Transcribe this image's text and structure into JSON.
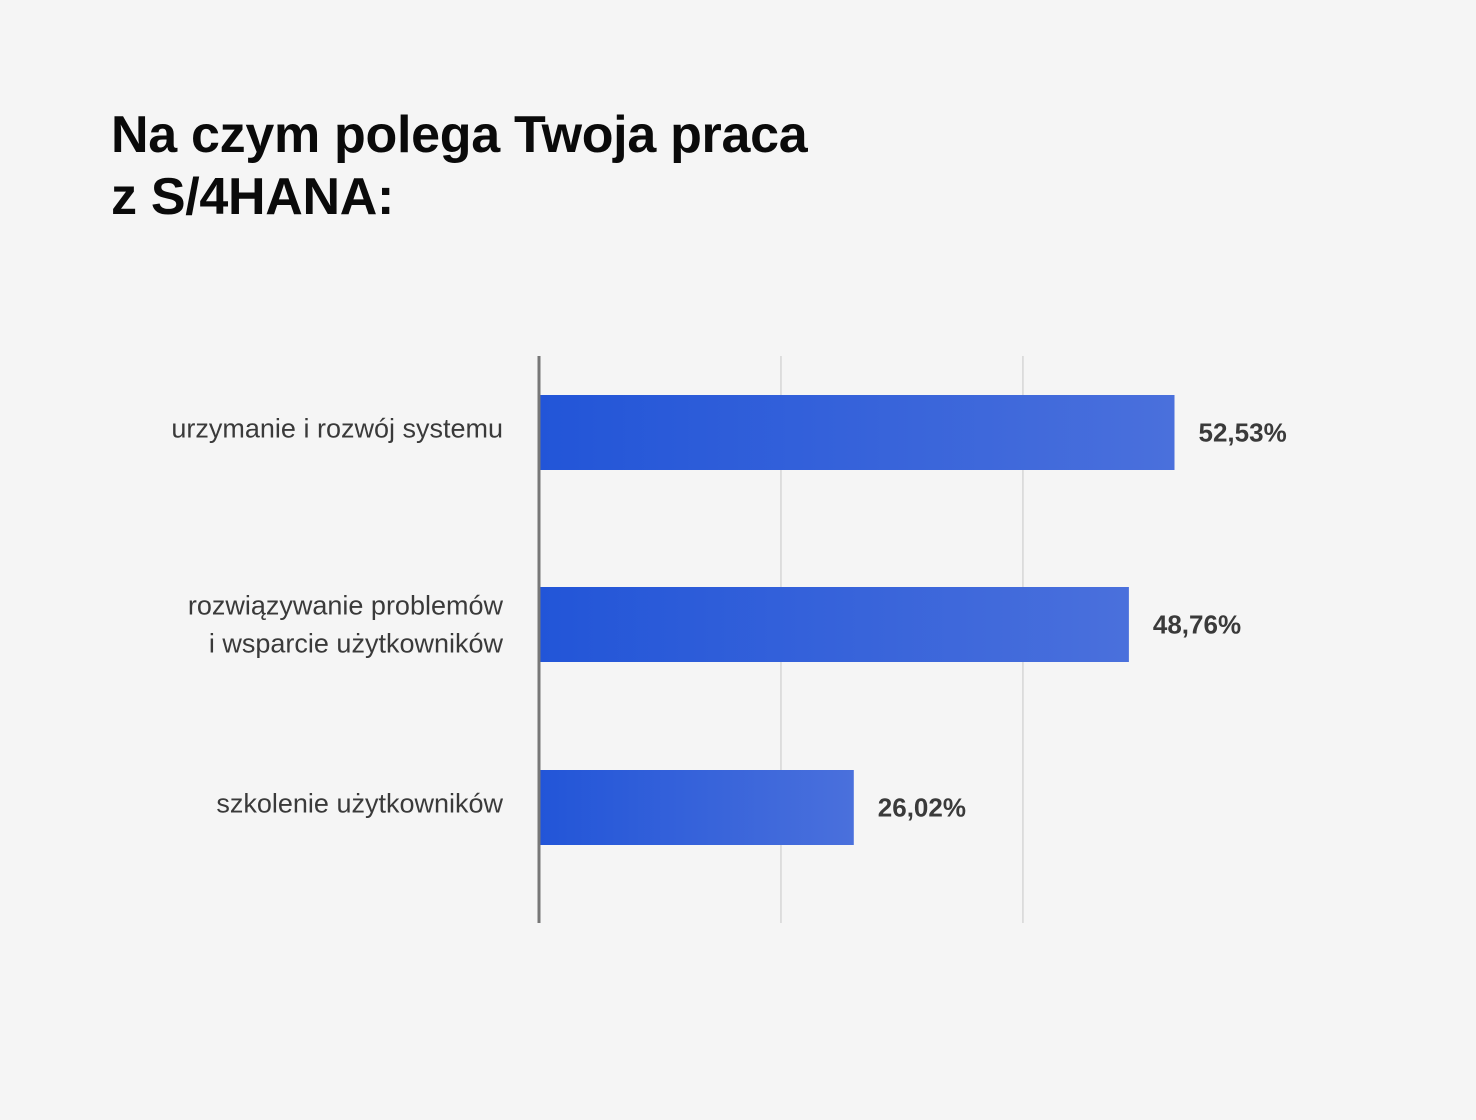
{
  "title": {
    "line1": "Na czym polega Twoja praca",
    "line2": "z S/4HANA:"
  },
  "colors": {
    "background": "#f5f5f5",
    "bar_start": "#2255d8",
    "bar_end": "#4a70dc",
    "axis": "#777777",
    "grid": "#d6d6d6",
    "text": "#3a3a3a"
  },
  "chart_data": {
    "type": "bar",
    "orientation": "horizontal",
    "categories": [
      [
        "urzymanie i rozwój systemu"
      ],
      [
        "rozwiązywanie problemów",
        "i wsparcie użytkowników"
      ],
      [
        "szkolenie użytkowników"
      ]
    ],
    "values": [
      52.53,
      48.76,
      26.02
    ],
    "value_labels": [
      "52,53%",
      "48,76%",
      "26,02%"
    ],
    "xlim": [
      0,
      60
    ],
    "grid": true,
    "legend": "none"
  }
}
